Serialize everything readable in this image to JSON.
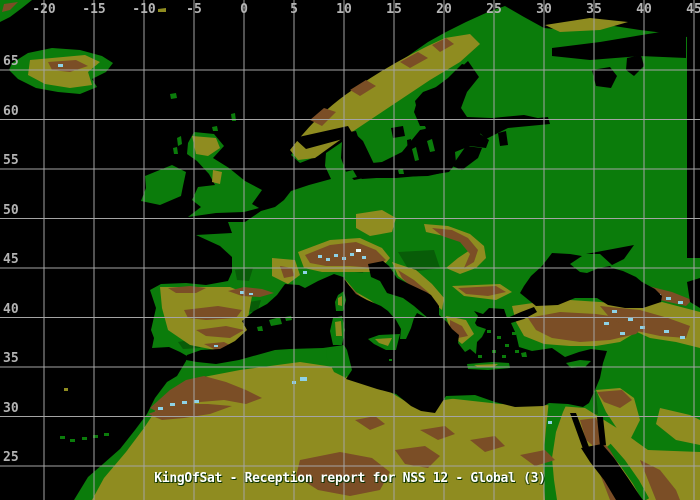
{
  "map": {
    "title": "KingOfSat - Reception report for NSS 12 - Global (3)",
    "axis": {
      "top_longitude_labels": [
        "-20",
        "-15",
        "-10",
        "-5",
        "0",
        "5",
        "10",
        "15",
        "20",
        "25",
        "30",
        "35",
        "40",
        "45"
      ],
      "left_latitude_labels": [
        "65",
        "60",
        "55",
        "50",
        "45",
        "40",
        "35",
        "30",
        "25"
      ]
    },
    "colors": {
      "sea": "#000000",
      "lowland": "#0b7c0b",
      "lowland_shade": "#085c08",
      "highland": "#8f8c20",
      "mountain": "#7b4e26",
      "glacier": "#8ed2e6",
      "snow": "#eefafa",
      "grid": "#a4a4a4",
      "axis_text": "#b4b4b4",
      "title_text": "#ffffff"
    }
  }
}
